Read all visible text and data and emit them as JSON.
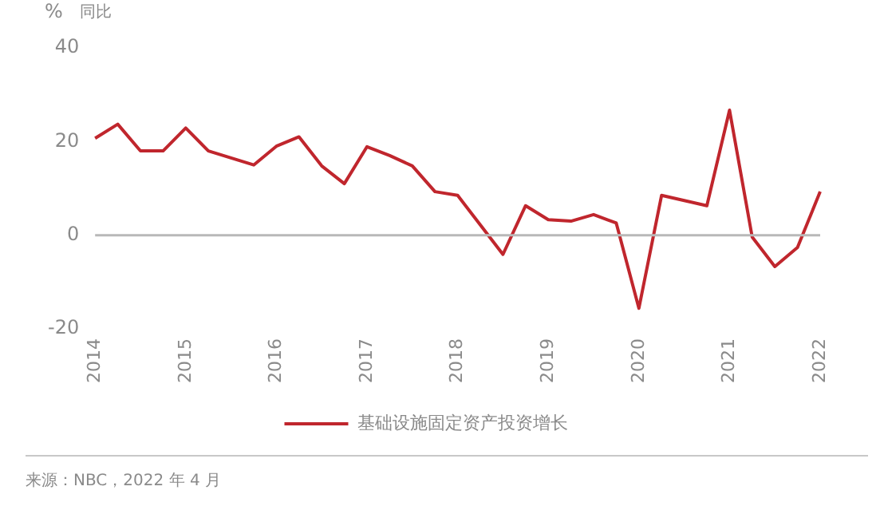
{
  "chart_data": {
    "type": "line",
    "ylabel": "%",
    "subtitle": "同比",
    "categories": [
      "2014",
      null,
      null,
      null,
      "2015",
      null,
      null,
      null,
      "2016",
      null,
      null,
      null,
      "2017",
      null,
      null,
      null,
      "2018",
      null,
      null,
      null,
      "2019",
      null,
      null,
      null,
      "2020",
      null,
      null,
      null,
      "2021",
      null,
      null,
      null,
      "2022"
    ],
    "series": [
      {
        "name": "基础设施固定资产投资增长",
        "color": "#c0262d",
        "values": [
          20.7,
          23.7,
          18,
          18,
          22.9,
          18,
          16.5,
          15,
          19,
          21,
          14.8,
          11,
          18.9,
          17,
          14.8,
          9.3,
          8.5,
          2.2,
          -4.1,
          6.3,
          3.3,
          3.0,
          4.4,
          2.6,
          -15.6,
          8.5,
          7.4,
          6.3,
          26.7,
          -0.4,
          -6.7,
          -2.6,
          9.3
        ]
      }
    ],
    "ylim": [
      -20,
      40
    ],
    "yticks": [
      -20,
      0,
      20,
      40
    ],
    "grid": false,
    "legend": "bottom",
    "marker": "none",
    "line_style": "solid",
    "ref_lines": [
      {
        "axis": "y",
        "value": 0,
        "color": "#b8b8b8"
      }
    ],
    "annotations": [
      "来源：NBC，2022 年 4 月"
    ]
  }
}
